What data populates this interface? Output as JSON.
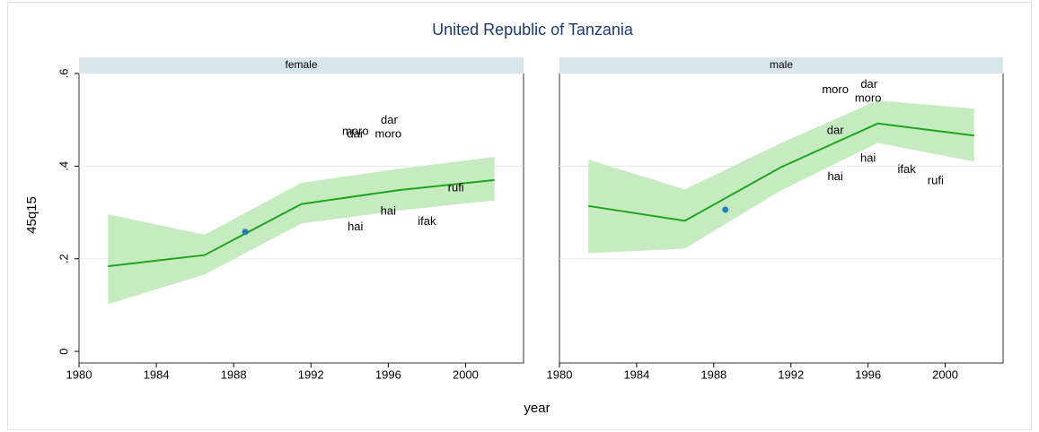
{
  "chart_data": {
    "type": "line",
    "title": "United Republic of Tanzania",
    "x_label": "year",
    "y_label": "45q15",
    "xlim": [
      1980,
      2003
    ],
    "xticks": [
      1980,
      1984,
      1988,
      1992,
      1996,
      2000
    ],
    "ylim": [
      -0.025,
      0.6
    ],
    "yticks": [
      {
        "value": 0,
        "label": "0"
      },
      {
        "value": 0.2,
        "label": ".2"
      },
      {
        "value": 0.4,
        "label": ".4"
      },
      {
        "value": 0.6,
        "label": ".6"
      }
    ],
    "grid": true,
    "line_color": "#1ea51e",
    "band_color": "#c6ebc1",
    "point_color": "#1f7fb4",
    "panels": [
      {
        "name": "female",
        "x": [
          1981.5,
          1986.5,
          1991.5,
          1996.5,
          2001.5
        ],
        "values": [
          0.184,
          0.208,
          0.318,
          0.348,
          0.37
        ],
        "lower": [
          0.102,
          0.166,
          0.276,
          0.304,
          0.326
        ],
        "upper": [
          0.296,
          0.252,
          0.364,
          0.394,
          0.42
        ],
        "point": {
          "x": 1988.6,
          "y": 0.258
        },
        "labels": [
          {
            "text": "moro",
            "x": 1994.3,
            "y": 0.474
          },
          {
            "text": "dar",
            "x": 1994.3,
            "y": 0.468
          },
          {
            "text": "dar",
            "x": 1996.05,
            "y": 0.498
          },
          {
            "text": "moro",
            "x": 1996.0,
            "y": 0.468
          },
          {
            "text": "hai",
            "x": 1996.0,
            "y": 0.302
          },
          {
            "text": "hai",
            "x": 1994.3,
            "y": 0.268
          },
          {
            "text": "ifak",
            "x": 1998.0,
            "y": 0.28
          },
          {
            "text": "rufi",
            "x": 1999.5,
            "y": 0.352
          }
        ]
      },
      {
        "name": "male",
        "x": [
          1981.5,
          1986.5,
          1991.5,
          1996.5,
          2001.5
        ],
        "values": [
          0.314,
          0.282,
          0.398,
          0.492,
          0.466
        ],
        "lower": [
          0.212,
          0.222,
          0.348,
          0.45,
          0.41
        ],
        "upper": [
          0.414,
          0.35,
          0.45,
          0.542,
          0.524
        ],
        "point": {
          "x": 1988.6,
          "y": 0.306
        },
        "labels": [
          {
            "text": "moro",
            "x": 1994.3,
            "y": 0.564
          },
          {
            "text": "dar",
            "x": 1996.05,
            "y": 0.576
          },
          {
            "text": "moro",
            "x": 1996.0,
            "y": 0.546
          },
          {
            "text": "dar",
            "x": 1994.3,
            "y": 0.476
          },
          {
            "text": "hai",
            "x": 1996.0,
            "y": 0.416
          },
          {
            "text": "hai",
            "x": 1994.3,
            "y": 0.376
          },
          {
            "text": "ifak",
            "x": 1998.0,
            "y": 0.392
          },
          {
            "text": "rufi",
            "x": 1999.5,
            "y": 0.368
          }
        ]
      }
    ]
  }
}
